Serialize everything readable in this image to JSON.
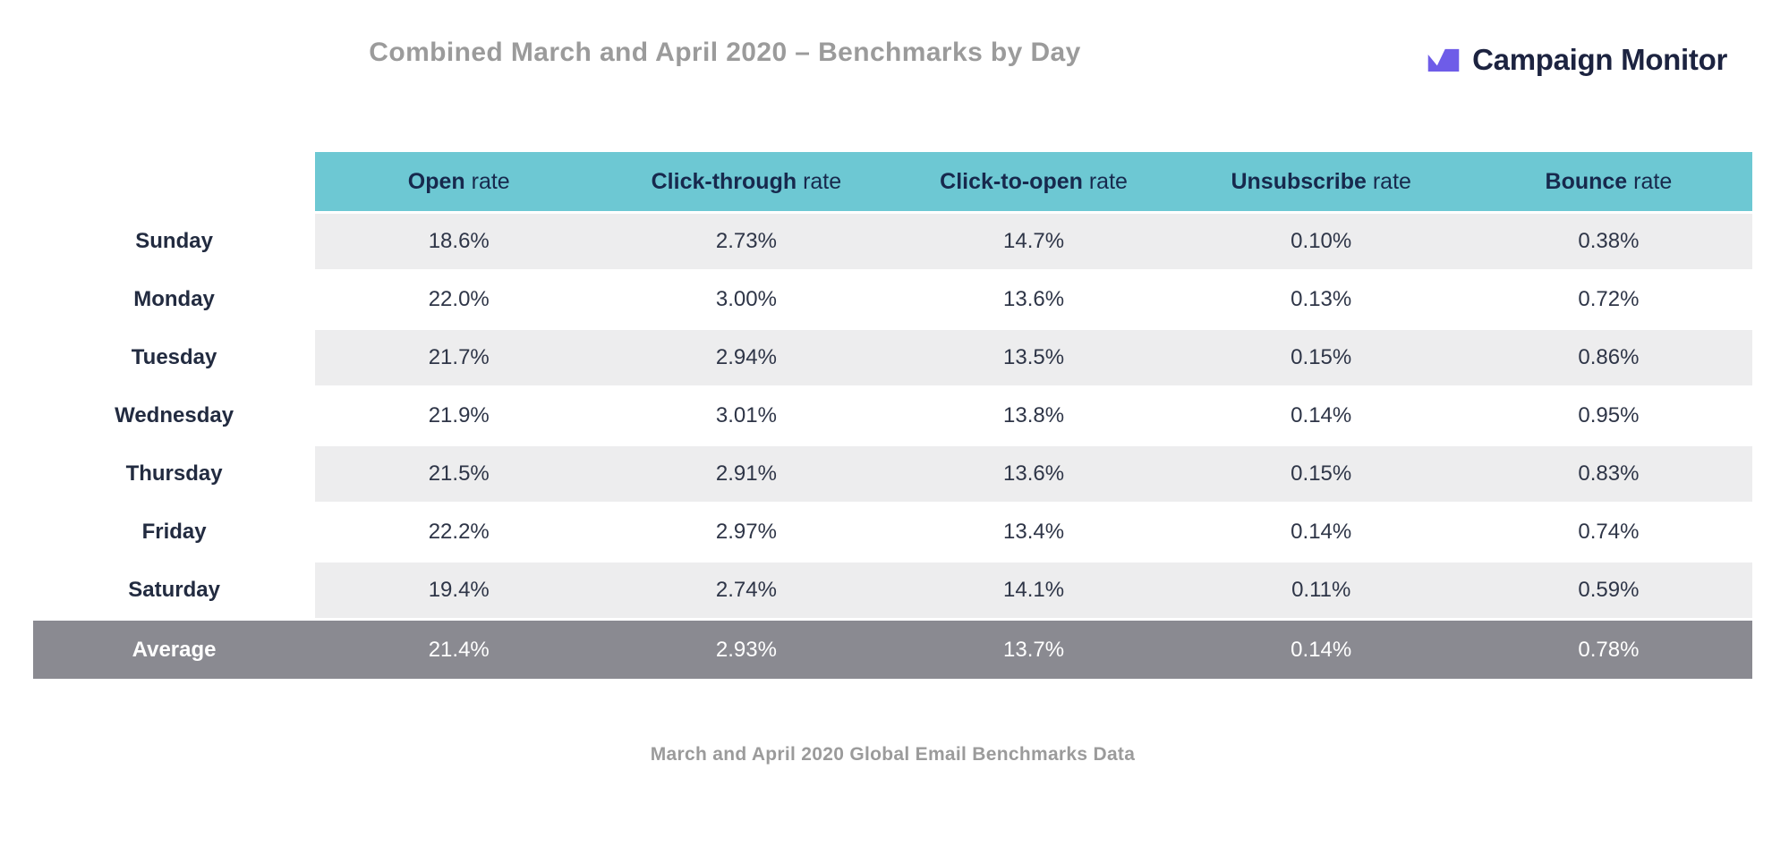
{
  "header": {
    "title": "Combined March and April 2020 – Benchmarks by Day",
    "logo_text": "Campaign Monitor"
  },
  "table": {
    "columns": [
      {
        "bold": "Open",
        "rest": " rate"
      },
      {
        "bold": "Click-through",
        "rest": " rate"
      },
      {
        "bold": "Click-to-open",
        "rest": " rate"
      },
      {
        "bold": "Unsubscribe",
        "rest": " rate"
      },
      {
        "bold": "Bounce",
        "rest": " rate"
      }
    ],
    "rows": [
      {
        "day": "Sunday",
        "values": [
          "18.6%",
          "2.73%",
          "14.7%",
          "0.10%",
          "0.38%"
        ]
      },
      {
        "day": "Monday",
        "values": [
          "22.0%",
          "3.00%",
          "13.6%",
          "0.13%",
          "0.72%"
        ]
      },
      {
        "day": "Tuesday",
        "values": [
          "21.7%",
          "2.94%",
          "13.5%",
          "0.15%",
          "0.86%"
        ]
      },
      {
        "day": "Wednesday",
        "values": [
          "21.9%",
          "3.01%",
          "13.8%",
          "0.14%",
          "0.95%"
        ]
      },
      {
        "day": "Thursday",
        "values": [
          "21.5%",
          "2.91%",
          "13.6%",
          "0.15%",
          "0.83%"
        ]
      },
      {
        "day": "Friday",
        "values": [
          "22.2%",
          "2.97%",
          "13.4%",
          "0.14%",
          "0.74%"
        ]
      },
      {
        "day": "Saturday",
        "values": [
          "19.4%",
          "2.74%",
          "14.1%",
          "0.11%",
          "0.59%"
        ]
      }
    ],
    "average_row": {
      "day": "Average",
      "values": [
        "21.4%",
        "2.93%",
        "13.7%",
        "0.14%",
        "0.78%"
      ]
    }
  },
  "footer": {
    "caption": "March and April 2020 Global Email Benchmarks Data"
  },
  "icons": {
    "logo_mark": "campaign-monitor-mark"
  },
  "colors": {
    "header_teal": "#6dc8d3",
    "row_stripe": "#ededee",
    "average_gray": "#8a8a91",
    "text_navy": "#1f2a44",
    "title_gray": "#9b9b9b",
    "logo_purple": "#6e5ce8",
    "logo_text": "#1c2340"
  },
  "chart_data": {
    "type": "table",
    "title": "Combined March and April 2020 – Benchmarks by Day",
    "caption": "March and April 2020 Global Email Benchmarks Data",
    "categories": [
      "Sunday",
      "Monday",
      "Tuesday",
      "Wednesday",
      "Thursday",
      "Friday",
      "Saturday",
      "Average"
    ],
    "unit": "%",
    "series": [
      {
        "name": "Open rate",
        "values": [
          18.6,
          22.0,
          21.7,
          21.9,
          21.5,
          22.2,
          19.4,
          21.4
        ]
      },
      {
        "name": "Click-through rate",
        "values": [
          2.73,
          3.0,
          2.94,
          3.01,
          2.91,
          2.97,
          2.74,
          2.93
        ]
      },
      {
        "name": "Click-to-open rate",
        "values": [
          14.7,
          13.6,
          13.5,
          13.8,
          13.6,
          13.4,
          14.1,
          13.7
        ]
      },
      {
        "name": "Unsubscribe rate",
        "values": [
          0.1,
          0.13,
          0.15,
          0.14,
          0.15,
          0.14,
          0.11,
          0.14
        ]
      },
      {
        "name": "Bounce rate",
        "values": [
          0.38,
          0.72,
          0.86,
          0.95,
          0.83,
          0.74,
          0.59,
          0.78
        ]
      }
    ],
    "layout": {
      "striped_rows": true,
      "header_background": "#6dc8d3",
      "summary_row_background": "#8a8a91"
    }
  }
}
